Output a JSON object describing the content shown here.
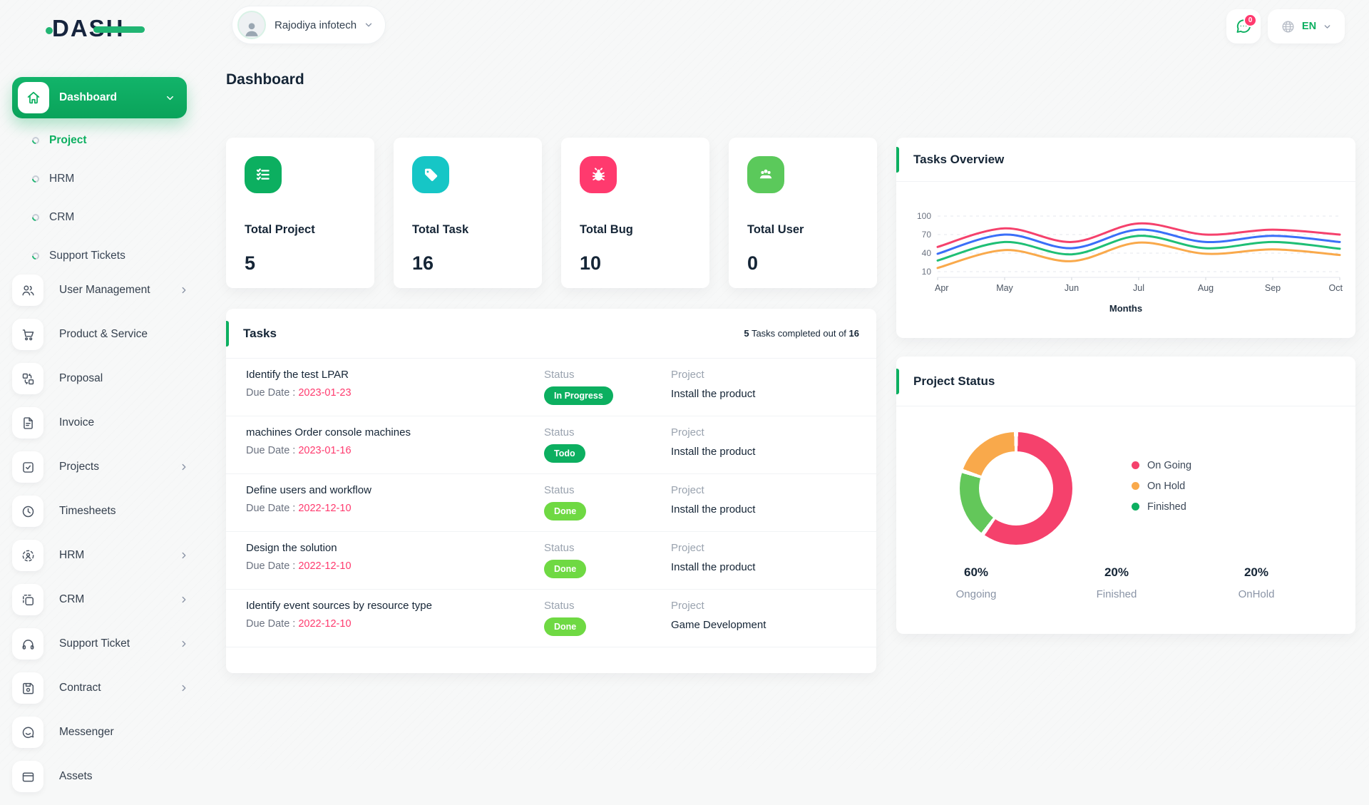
{
  "brand": {
    "logo": "DASH"
  },
  "header": {
    "workspace": "Rajodiya infotech",
    "chat_badge": "0",
    "language": "EN"
  },
  "sidebar": {
    "dashboard": {
      "label": "Dashboard"
    },
    "dashboard_children": [
      {
        "label": "Project",
        "active": true
      },
      {
        "label": "HRM"
      },
      {
        "label": "CRM"
      },
      {
        "label": "Support Tickets"
      }
    ],
    "items": [
      {
        "label": "User Management"
      },
      {
        "label": "Product & Service"
      },
      {
        "label": "Proposal"
      },
      {
        "label": "Invoice"
      },
      {
        "label": "Projects"
      },
      {
        "label": "Timesheets"
      },
      {
        "label": "HRM"
      },
      {
        "label": "CRM"
      },
      {
        "label": "Support Ticket"
      },
      {
        "label": "Contract"
      },
      {
        "label": "Messenger"
      },
      {
        "label": "Assets"
      }
    ]
  },
  "page": {
    "title": "Dashboard"
  },
  "stats": [
    {
      "label": "Total Project",
      "value": "5",
      "color": "#0CAF60"
    },
    {
      "label": "Total Task",
      "value": "16",
      "color": "#16C6C6"
    },
    {
      "label": "Total Bug",
      "value": "10",
      "color": "#FF3A6E"
    },
    {
      "label": "Total User",
      "value": "0",
      "color": "#5BC95B"
    }
  ],
  "tasks": {
    "title": "Tasks",
    "summary": {
      "count": "5",
      "text": " Tasks completed out of ",
      "total": "16"
    },
    "labels": {
      "due": "Due Date : ",
      "status": "Status",
      "project": "Project"
    },
    "rows": [
      {
        "name": "Identify the test LPAR",
        "due": "2023-01-23",
        "status": "In Progress",
        "status_color": "#0CAF60",
        "project": "Install the product"
      },
      {
        "name": "machines Order console machines",
        "due": "2023-01-16",
        "status": "Todo",
        "status_color": "#0CAF60",
        "project": "Install the product"
      },
      {
        "name": "Define users and workflow",
        "due": "2022-12-10",
        "status": "Done",
        "status_color": "#6FD943",
        "project": "Install the product"
      },
      {
        "name": "Design the solution",
        "due": "2022-12-10",
        "status": "Done",
        "status_color": "#6FD943",
        "project": "Install the product"
      },
      {
        "name": "Identify event sources by resource type",
        "due": "2022-12-10",
        "status": "Done",
        "status_color": "#6FD943",
        "project": "Game Development"
      }
    ]
  },
  "chart_data": [
    {
      "id": "tasks-overview",
      "type": "line",
      "title": "Tasks Overview",
      "x": [
        "Apr",
        "May",
        "Jun",
        "Jul",
        "Aug",
        "Sep",
        "Oct"
      ],
      "xlabel": "Months",
      "yticks": [
        100,
        70,
        40,
        10
      ],
      "ylim": [
        10,
        100
      ],
      "grid": "dashed-horizontal",
      "legend_position": "none",
      "series": [
        {
          "name": "pink",
          "color": "#F5416C",
          "values": [
            50,
            80,
            58,
            88,
            70,
            78,
            70
          ]
        },
        {
          "name": "blue",
          "color": "#3A6FF8",
          "values": [
            39,
            70,
            48,
            78,
            58,
            68,
            58
          ]
        },
        {
          "name": "green",
          "color": "#1FBF75",
          "values": [
            28,
            58,
            38,
            68,
            48,
            58,
            47
          ]
        },
        {
          "name": "orange",
          "color": "#F9A94B",
          "values": [
            16,
            45,
            27,
            57,
            39,
            46,
            37
          ]
        }
      ]
    },
    {
      "id": "project-status",
      "type": "donut",
      "title": "Project Status",
      "slices": [
        {
          "label": "On Going",
          "value": 60,
          "color": "#F5416C"
        },
        {
          "label": "Finished",
          "value": 20,
          "color": "#63C75A"
        },
        {
          "label": "On Hold",
          "value": 20,
          "color": "#F9A94B"
        }
      ],
      "legend_position": "right",
      "legend": [
        {
          "label": "On Going",
          "color": "#F5416C"
        },
        {
          "label": "On Hold",
          "color": "#F9A94B"
        },
        {
          "label": "Finished",
          "color": "#0CAF60"
        }
      ],
      "summary": [
        {
          "pct": "60%",
          "label": "Ongoing"
        },
        {
          "pct": "20%",
          "label": "Finished"
        },
        {
          "pct": "20%",
          "label": "OnHold"
        }
      ]
    }
  ]
}
